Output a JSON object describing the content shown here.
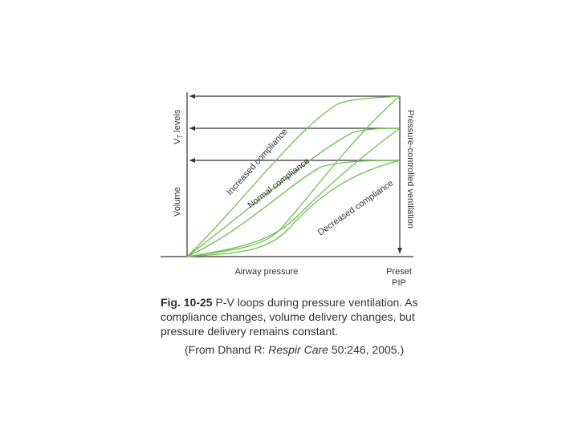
{
  "figure": {
    "y_axis": {
      "vt_levels": {
        "v": "V",
        "sub": "T",
        "rest": " levels"
      },
      "volume": "Volume"
    },
    "curves": {
      "increased": "Increased compliance",
      "normal": "Normal compliance",
      "decreased": "Decreased compliance"
    },
    "right_label": "Pressure-controlled ventilation",
    "x_axis": {
      "label": "Airway pressure",
      "preset": [
        "Preset",
        "PIP"
      ]
    },
    "caption": {
      "fig": "Fig. 10-25",
      "text": " P-V loops during pressure ventilation. As compliance changes, volume delivery changes, but pressure delivery remains constant."
    },
    "source": {
      "pre": "(From Dhand R: ",
      "journal": "Respir Care",
      "post": " 50:246, 2005.)"
    }
  }
}
